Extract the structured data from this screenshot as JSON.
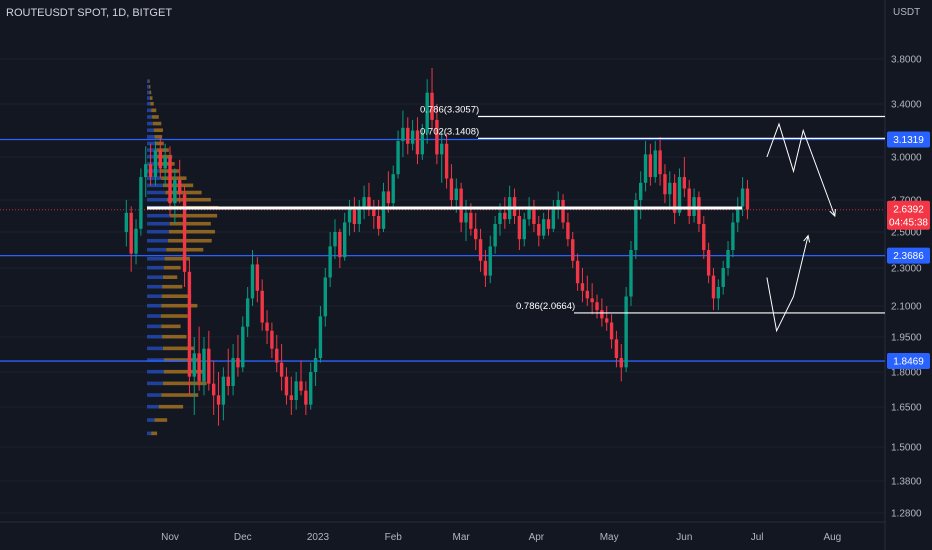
{
  "header": {
    "title": "ROUTEUSDT SPOT, 1D, BITGET",
    "unit": "USDT"
  },
  "chart_data": {
    "type": "candlestick",
    "symbol": "ROUTEUSDT SPOT",
    "interval": "1D",
    "exchange": "BITGET",
    "y_ticks": [
      "3.8000",
      "3.4000",
      "3.0000",
      "2.7000",
      "2.5000",
      "2.3000",
      "2.1000",
      "1.9500",
      "1.8000",
      "1.6500",
      "1.5000",
      "1.3800",
      "1.2800"
    ],
    "x_ticks": [
      "Nov",
      "Dec",
      "2023",
      "Feb",
      "Mar",
      "Apr",
      "May",
      "Jun",
      "Jul",
      "Aug"
    ],
    "price_tags": [
      {
        "label": "3.1319",
        "value": 3.1319,
        "color": "#2962ff"
      },
      {
        "label": "2.3686",
        "value": 2.3686,
        "color": "#2962ff"
      },
      {
        "label": "1.8469",
        "value": 1.8469,
        "color": "#2962ff"
      }
    ],
    "current_price": {
      "label": "2.6392",
      "value": 2.6392,
      "countdown": "04:45:38",
      "color": "#f23645"
    },
    "horizontal_levels": [
      {
        "value": 3.1319,
        "color": "#2962ff"
      },
      {
        "value": 2.3686,
        "color": "#2962ff"
      },
      {
        "value": 1.8469,
        "color": "#2962ff"
      }
    ],
    "fib_annotations": [
      {
        "label": "0.786(3.3057)",
        "value": 3.3057
      },
      {
        "label": "0.702(3.1408)",
        "value": 3.1408
      },
      {
        "label": "0.786(2.0664)",
        "value": 2.0664
      }
    ],
    "range_line": {
      "value": 2.65,
      "color": "#ffffff"
    },
    "projections": [
      {
        "direction": "down",
        "path": [
          [
            3.0,
            "2023-07-05"
          ],
          [
            3.25,
            "2023-07-10"
          ],
          [
            2.9,
            "2023-07-16"
          ],
          [
            3.2,
            "2023-07-20"
          ],
          [
            2.6,
            "2023-08-02"
          ]
        ]
      },
      {
        "direction": "up",
        "path": [
          [
            2.25,
            "2023-07-05"
          ],
          [
            1.98,
            "2023-07-09"
          ],
          [
            2.15,
            "2023-07-16"
          ],
          [
            2.48,
            "2023-07-22"
          ]
        ]
      }
    ],
    "candles": [
      [
        "2022-10-14",
        2.5,
        2.7,
        2.42,
        2.62
      ],
      [
        "2022-10-16",
        2.62,
        2.66,
        2.28,
        2.38
      ],
      [
        "2022-10-18",
        2.38,
        2.58,
        2.32,
        2.52
      ],
      [
        "2022-10-20",
        2.52,
        2.92,
        2.48,
        2.86
      ],
      [
        "2022-10-22",
        2.86,
        3.08,
        2.72,
        2.95
      ],
      [
        "2022-10-24",
        2.95,
        3.1,
        2.8,
        2.86
      ],
      [
        "2022-10-26",
        2.86,
        3.12,
        2.8,
        3.05
      ],
      [
        "2022-10-28",
        3.05,
        3.15,
        2.85,
        2.92
      ],
      [
        "2022-10-30",
        2.92,
        3.1,
        2.8,
        3.0
      ],
      [
        "2022-11-01",
        3.0,
        3.08,
        2.6,
        2.68
      ],
      [
        "2022-11-03",
        2.68,
        2.92,
        2.55,
        2.84
      ],
      [
        "2022-11-05",
        2.84,
        2.98,
        2.68,
        2.74
      ],
      [
        "2022-11-07",
        2.74,
        2.8,
        2.2,
        2.28
      ],
      [
        "2022-11-09",
        2.28,
        2.35,
        1.7,
        1.78
      ],
      [
        "2022-11-11",
        1.78,
        1.95,
        1.62,
        1.88
      ],
      [
        "2022-11-13",
        1.88,
        2.0,
        1.72,
        1.76
      ],
      [
        "2022-11-15",
        1.76,
        1.95,
        1.7,
        1.9
      ],
      [
        "2022-11-17",
        1.9,
        1.98,
        1.72,
        1.75
      ],
      [
        "2022-11-19",
        1.75,
        1.85,
        1.62,
        1.7
      ],
      [
        "2022-11-21",
        1.7,
        1.8,
        1.58,
        1.66
      ],
      [
        "2022-11-23",
        1.66,
        1.82,
        1.6,
        1.78
      ],
      [
        "2022-11-25",
        1.78,
        1.9,
        1.7,
        1.74
      ],
      [
        "2022-11-27",
        1.74,
        1.92,
        1.7,
        1.86
      ],
      [
        "2022-11-29",
        1.86,
        1.96,
        1.78,
        1.82
      ],
      [
        "2022-12-01",
        1.82,
        2.05,
        1.8,
        2.0
      ],
      [
        "2022-12-03",
        2.0,
        2.2,
        1.95,
        2.14
      ],
      [
        "2022-12-05",
        2.14,
        2.4,
        2.1,
        2.32
      ],
      [
        "2022-12-07",
        2.32,
        2.36,
        2.12,
        2.18
      ],
      [
        "2022-12-09",
        2.18,
        2.24,
        1.98,
        2.02
      ],
      [
        "2022-12-11",
        2.02,
        2.08,
        1.92,
        1.98
      ],
      [
        "2022-12-13",
        1.98,
        2.02,
        1.86,
        1.9
      ],
      [
        "2022-12-15",
        1.9,
        1.96,
        1.8,
        1.84
      ],
      [
        "2022-12-17",
        1.84,
        1.92,
        1.72,
        1.78
      ],
      [
        "2022-12-19",
        1.78,
        1.82,
        1.66,
        1.7
      ],
      [
        "2022-12-21",
        1.7,
        1.78,
        1.62,
        1.68
      ],
      [
        "2022-12-23",
        1.68,
        1.8,
        1.64,
        1.76
      ],
      [
        "2022-12-25",
        1.76,
        1.85,
        1.7,
        1.72
      ],
      [
        "2022-12-27",
        1.72,
        1.76,
        1.62,
        1.66
      ],
      [
        "2022-12-29",
        1.66,
        1.84,
        1.64,
        1.8
      ],
      [
        "2022-12-31",
        1.8,
        1.9,
        1.74,
        1.86
      ],
      [
        "2023-01-02",
        1.86,
        2.1,
        1.84,
        2.05
      ],
      [
        "2023-01-04",
        2.05,
        2.3,
        2.0,
        2.25
      ],
      [
        "2023-01-06",
        2.25,
        2.5,
        2.2,
        2.42
      ],
      [
        "2023-01-08",
        2.42,
        2.58,
        2.35,
        2.5
      ],
      [
        "2023-01-10",
        2.5,
        2.52,
        2.3,
        2.36
      ],
      [
        "2023-01-12",
        2.36,
        2.62,
        2.34,
        2.56
      ],
      [
        "2023-01-14",
        2.56,
        2.7,
        2.48,
        2.64
      ],
      [
        "2023-01-16",
        2.64,
        2.72,
        2.5,
        2.55
      ],
      [
        "2023-01-18",
        2.55,
        2.7,
        2.5,
        2.66
      ],
      [
        "2023-01-20",
        2.66,
        2.8,
        2.58,
        2.72
      ],
      [
        "2023-01-22",
        2.72,
        2.82,
        2.6,
        2.64
      ],
      [
        "2023-01-24",
        2.64,
        2.7,
        2.52,
        2.6
      ],
      [
        "2023-01-26",
        2.6,
        2.7,
        2.48,
        2.52
      ],
      [
        "2023-01-28",
        2.52,
        2.82,
        2.5,
        2.76
      ],
      [
        "2023-01-30",
        2.76,
        2.9,
        2.62,
        2.68
      ],
      [
        "2023-02-01",
        2.68,
        2.94,
        2.66,
        2.88
      ],
      [
        "2023-02-03",
        2.88,
        3.2,
        2.85,
        3.12
      ],
      [
        "2023-02-05",
        3.12,
        3.35,
        3.0,
        3.22
      ],
      [
        "2023-02-07",
        3.22,
        3.3,
        3.02,
        3.1
      ],
      [
        "2023-02-09",
        3.1,
        3.28,
        3.05,
        3.2
      ],
      [
        "2023-02-11",
        3.2,
        3.3,
        2.95,
        3.02
      ],
      [
        "2023-02-13",
        3.02,
        3.25,
        2.98,
        3.18
      ],
      [
        "2023-02-15",
        3.18,
        3.62,
        3.1,
        3.5
      ],
      [
        "2023-02-17",
        3.5,
        3.72,
        3.2,
        3.28
      ],
      [
        "2023-02-19",
        3.28,
        3.4,
        2.95,
        3.02
      ],
      [
        "2023-02-21",
        3.02,
        3.2,
        2.82,
        3.1
      ],
      [
        "2023-02-23",
        3.1,
        3.18,
        2.78,
        2.85
      ],
      [
        "2023-02-25",
        2.85,
        2.95,
        2.65,
        2.7
      ],
      [
        "2023-02-27",
        2.7,
        2.85,
        2.62,
        2.78
      ],
      [
        "2023-03-01",
        2.78,
        2.82,
        2.5,
        2.56
      ],
      [
        "2023-03-03",
        2.56,
        2.7,
        2.45,
        2.62
      ],
      [
        "2023-03-05",
        2.62,
        2.68,
        2.48,
        2.52
      ],
      [
        "2023-03-07",
        2.52,
        2.62,
        2.4,
        2.46
      ],
      [
        "2023-03-09",
        2.46,
        2.52,
        2.28,
        2.34
      ],
      [
        "2023-03-11",
        2.34,
        2.4,
        2.2,
        2.26
      ],
      [
        "2023-03-13",
        2.26,
        2.48,
        2.22,
        2.42
      ],
      [
        "2023-03-15",
        2.42,
        2.6,
        2.38,
        2.55
      ],
      [
        "2023-03-17",
        2.55,
        2.68,
        2.48,
        2.62
      ],
      [
        "2023-03-19",
        2.62,
        2.72,
        2.52,
        2.58
      ],
      [
        "2023-03-21",
        2.58,
        2.8,
        2.55,
        2.72
      ],
      [
        "2023-03-23",
        2.72,
        2.78,
        2.55,
        2.6
      ],
      [
        "2023-03-25",
        2.6,
        2.66,
        2.4,
        2.46
      ],
      [
        "2023-03-27",
        2.46,
        2.62,
        2.42,
        2.58
      ],
      [
        "2023-03-29",
        2.58,
        2.72,
        2.54,
        2.66
      ],
      [
        "2023-03-31",
        2.66,
        2.7,
        2.5,
        2.55
      ],
      [
        "2023-04-02",
        2.55,
        2.6,
        2.42,
        2.48
      ],
      [
        "2023-04-04",
        2.48,
        2.62,
        2.46,
        2.58
      ],
      [
        "2023-04-06",
        2.58,
        2.66,
        2.48,
        2.52
      ],
      [
        "2023-04-08",
        2.52,
        2.7,
        2.5,
        2.64
      ],
      [
        "2023-04-10",
        2.64,
        2.76,
        2.58,
        2.7
      ],
      [
        "2023-04-12",
        2.7,
        2.74,
        2.52,
        2.56
      ],
      [
        "2023-04-14",
        2.56,
        2.62,
        2.42,
        2.46
      ],
      [
        "2023-04-16",
        2.46,
        2.5,
        2.3,
        2.34
      ],
      [
        "2023-04-18",
        2.34,
        2.38,
        2.18,
        2.22
      ],
      [
        "2023-04-20",
        2.22,
        2.3,
        2.12,
        2.18
      ],
      [
        "2023-04-22",
        2.18,
        2.26,
        2.1,
        2.14
      ],
      [
        "2023-04-24",
        2.14,
        2.22,
        2.06,
        2.12
      ],
      [
        "2023-04-26",
        2.12,
        2.16,
        2.04,
        2.08
      ],
      [
        "2023-04-28",
        2.08,
        2.14,
        2.0,
        2.04
      ],
      [
        "2023-04-30",
        2.04,
        2.1,
        1.98,
        2.02
      ],
      [
        "2023-05-02",
        2.02,
        2.06,
        1.9,
        1.94
      ],
      [
        "2023-05-04",
        1.94,
        1.98,
        1.82,
        1.86
      ],
      [
        "2023-05-06",
        1.86,
        1.92,
        1.76,
        1.82
      ],
      [
        "2023-05-08",
        1.82,
        2.2,
        1.8,
        2.15
      ],
      [
        "2023-05-10",
        2.15,
        2.45,
        2.1,
        2.4
      ],
      [
        "2023-05-12",
        2.4,
        2.75,
        2.35,
        2.7
      ],
      [
        "2023-05-14",
        2.7,
        2.9,
        2.58,
        2.82
      ],
      [
        "2023-05-16",
        2.82,
        3.12,
        2.76,
        3.02
      ],
      [
        "2023-05-18",
        3.02,
        3.1,
        2.8,
        2.86
      ],
      [
        "2023-05-20",
        2.86,
        3.12,
        2.82,
        3.05
      ],
      [
        "2023-05-22",
        3.05,
        3.15,
        2.8,
        2.88
      ],
      [
        "2023-05-24",
        2.88,
        2.95,
        2.68,
        2.74
      ],
      [
        "2023-05-26",
        2.74,
        2.9,
        2.66,
        2.82
      ],
      [
        "2023-05-28",
        2.82,
        2.88,
        2.55,
        2.62
      ],
      [
        "2023-05-30",
        2.62,
        2.92,
        2.6,
        2.86
      ],
      [
        "2023-06-01",
        2.86,
        3.0,
        2.72,
        2.78
      ],
      [
        "2023-06-03",
        2.78,
        2.84,
        2.55,
        2.6
      ],
      [
        "2023-06-05",
        2.6,
        2.78,
        2.56,
        2.72
      ],
      [
        "2023-06-07",
        2.72,
        2.76,
        2.5,
        2.55
      ],
      [
        "2023-06-09",
        2.55,
        2.6,
        2.35,
        2.4
      ],
      [
        "2023-06-11",
        2.4,
        2.44,
        2.22,
        2.26
      ],
      [
        "2023-06-13",
        2.26,
        2.3,
        2.08,
        2.14
      ],
      [
        "2023-06-15",
        2.14,
        2.24,
        2.08,
        2.2
      ],
      [
        "2023-06-17",
        2.2,
        2.34,
        2.16,
        2.3
      ],
      [
        "2023-06-19",
        2.3,
        2.45,
        2.26,
        2.4
      ],
      [
        "2023-06-21",
        2.4,
        2.62,
        2.36,
        2.56
      ],
      [
        "2023-06-23",
        2.56,
        2.72,
        2.5,
        2.66
      ],
      [
        "2023-06-25",
        2.66,
        2.86,
        2.6,
        2.78
      ],
      [
        "2023-06-27",
        2.78,
        2.84,
        2.58,
        2.64
      ]
    ],
    "volume_profile": [
      {
        "price": 3.6,
        "up": 4,
        "down": 2
      },
      {
        "price": 3.55,
        "up": 5,
        "down": 3
      },
      {
        "price": 3.5,
        "up": 6,
        "down": 4
      },
      {
        "price": 3.45,
        "up": 7,
        "down": 6
      },
      {
        "price": 3.4,
        "up": 8,
        "down": 8
      },
      {
        "price": 3.35,
        "up": 10,
        "down": 12
      },
      {
        "price": 3.3,
        "up": 12,
        "down": 16
      },
      {
        "price": 3.25,
        "up": 14,
        "down": 20
      },
      {
        "price": 3.2,
        "up": 16,
        "down": 22
      },
      {
        "price": 3.15,
        "up": 18,
        "down": 18
      },
      {
        "price": 3.1,
        "up": 20,
        "down": 20
      },
      {
        "price": 3.05,
        "up": 22,
        "down": 30
      },
      {
        "price": 3.0,
        "up": 24,
        "down": 36
      },
      {
        "price": 2.95,
        "up": 26,
        "down": 40
      },
      {
        "price": 2.9,
        "up": 30,
        "down": 46
      },
      {
        "price": 2.85,
        "up": 34,
        "down": 60
      },
      {
        "price": 2.8,
        "up": 38,
        "down": 72
      },
      {
        "price": 2.75,
        "up": 44,
        "down": 86
      },
      {
        "price": 2.7,
        "up": 48,
        "down": 104
      },
      {
        "price": 2.65,
        "up": 52,
        "down": 118
      },
      {
        "price": 2.6,
        "up": 55,
        "down": 112
      },
      {
        "price": 2.55,
        "up": 54,
        "down": 98
      },
      {
        "price": 2.5,
        "up": 52,
        "down": 110
      },
      {
        "price": 2.45,
        "up": 50,
        "down": 104
      },
      {
        "price": 2.4,
        "up": 46,
        "down": 88
      },
      {
        "price": 2.35,
        "up": 42,
        "down": 60
      },
      {
        "price": 2.3,
        "up": 40,
        "down": 40
      },
      {
        "price": 2.25,
        "up": 38,
        "down": 34
      },
      {
        "price": 2.2,
        "up": 36,
        "down": 48
      },
      {
        "price": 2.15,
        "up": 35,
        "down": 70
      },
      {
        "price": 2.1,
        "up": 34,
        "down": 86
      },
      {
        "price": 2.05,
        "up": 33,
        "down": 64
      },
      {
        "price": 2.0,
        "up": 34,
        "down": 46
      },
      {
        "price": 1.95,
        "up": 36,
        "down": 58
      },
      {
        "price": 1.9,
        "up": 38,
        "down": 74
      },
      {
        "price": 1.85,
        "up": 40,
        "down": 84
      },
      {
        "price": 1.8,
        "up": 40,
        "down": 96
      },
      {
        "price": 1.75,
        "up": 38,
        "down": 104
      },
      {
        "price": 1.7,
        "up": 34,
        "down": 88
      },
      {
        "price": 1.65,
        "up": 28,
        "down": 58
      },
      {
        "price": 1.6,
        "up": 18,
        "down": 30
      },
      {
        "price": 1.55,
        "up": 10,
        "down": 14
      }
    ]
  }
}
